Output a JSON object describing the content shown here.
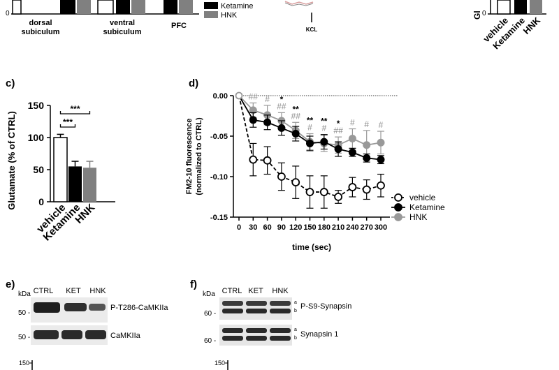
{
  "top_strip": {
    "group_labels": [
      [
        "dorsal",
        "subiculum"
      ],
      [
        "ventral",
        "subiculum"
      ],
      [
        "PFC"
      ]
    ],
    "legend": [
      "Ketamine",
      "HNK"
    ],
    "kcl_label": "KCL",
    "right_ylabel_fragment": "Gl",
    "right_categories": [
      "vehicle",
      "Ketamine",
      "HNK"
    ]
  },
  "panel_c": {
    "letter": "c)"
  },
  "panel_d": {
    "letter": "d)"
  },
  "panel_e": {
    "letter": "e)",
    "kda": "kDa",
    "lanes": [
      "CTRL",
      "KET",
      "HNK"
    ],
    "rows": [
      {
        "mw": "50 -",
        "label": "P-T286-CaMKIIa"
      },
      {
        "mw": "50 -",
        "label": "CaMKIIa"
      }
    ],
    "bottom_tick": "150"
  },
  "panel_f": {
    "letter": "f)",
    "kda": "kDa",
    "lanes": [
      "CTRL",
      "KET",
      "HNK"
    ],
    "rows": [
      {
        "mw": "60 -",
        "label": "P-S9-Synapsin"
      },
      {
        "mw": "60 -",
        "label": "Synapsin 1"
      }
    ],
    "band_marks": [
      "a",
      "b"
    ],
    "bottom_tick": "150"
  },
  "chart_data": [
    {
      "type": "bar",
      "panel": "c",
      "ylabel": "Glutamate (% of CTRL)",
      "categories": [
        "vehicle",
        "Ketamine",
        "HNK"
      ],
      "values": [
        100,
        55,
        53
      ],
      "errors": [
        5,
        8,
        10
      ],
      "colors": [
        "#ffffff",
        "#000000",
        "#808080"
      ],
      "ylim": [
        0,
        150
      ],
      "yticks": [
        0,
        50,
        100,
        150
      ],
      "significance": [
        {
          "from": 0,
          "to": 1,
          "label": "***"
        },
        {
          "from": 0,
          "to": 2,
          "label": "***"
        }
      ]
    },
    {
      "type": "line",
      "panel": "d",
      "xlabel": "time (sec)",
      "ylabel": [
        "FM2-10 fluorescence",
        "(normalized to CTRL)"
      ],
      "x": [
        0,
        30,
        60,
        90,
        120,
        150,
        180,
        210,
        240,
        270,
        300
      ],
      "xlim": [
        0,
        300
      ],
      "ylim": [
        -0.15,
        0.0
      ],
      "yticks": [
        0,
        -0.05,
        -0.1,
        -0.15
      ],
      "ytick_labels": [
        "0.00",
        "-0.05",
        "-0.10",
        "-0.15"
      ],
      "legend_position": "right",
      "series": [
        {
          "name": "vehicle",
          "style": "dashed-open",
          "color": "#000000",
          "values": [
            0,
            -0.079,
            -0.08,
            -0.1,
            -0.107,
            -0.119,
            -0.119,
            -0.125,
            -0.113,
            -0.116,
            -0.111
          ],
          "errors": [
            0,
            0.02,
            0.017,
            0.017,
            0.02,
            0.02,
            0.02,
            0.008,
            0.012,
            0.012,
            0.014
          ]
        },
        {
          "name": "Ketamine",
          "style": "solid-filled",
          "color": "#000000",
          "values": [
            0,
            -0.03,
            -0.033,
            -0.04,
            -0.047,
            -0.059,
            -0.057,
            -0.066,
            -0.07,
            -0.077,
            -0.079
          ],
          "errors": [
            0,
            0.009,
            0.009,
            0.009,
            0.009,
            0.009,
            0.009,
            0.009,
            0.005,
            0.005,
            0.005
          ]
        },
        {
          "name": "HNK",
          "style": "solid-filled",
          "color": "#999999",
          "values": [
            0,
            -0.018,
            -0.024,
            -0.031,
            -0.043,
            -0.057,
            -0.059,
            -0.061,
            -0.053,
            -0.061,
            -0.058
          ],
          "errors": [
            0,
            0.009,
            0.012,
            0.01,
            0.01,
            0.01,
            0.01,
            0.01,
            0.012,
            0.018,
            0.014
          ]
        }
      ],
      "annotations": [
        {
          "x": 30,
          "stars": "",
          "hashes": "##"
        },
        {
          "x": 60,
          "stars": "",
          "hashes": "#"
        },
        {
          "x": 90,
          "stars": "*",
          "hashes": "##"
        },
        {
          "x": 120,
          "stars": "**",
          "hashes": "##"
        },
        {
          "x": 150,
          "stars": "**",
          "hashes": "#"
        },
        {
          "x": 180,
          "stars": "**",
          "hashes": "#"
        },
        {
          "x": 210,
          "stars": "*",
          "hashes": "##"
        },
        {
          "x": 240,
          "stars": "",
          "hashes": "#"
        },
        {
          "x": 270,
          "stars": "",
          "hashes": "#"
        },
        {
          "x": 300,
          "stars": "",
          "hashes": "#"
        }
      ]
    }
  ]
}
